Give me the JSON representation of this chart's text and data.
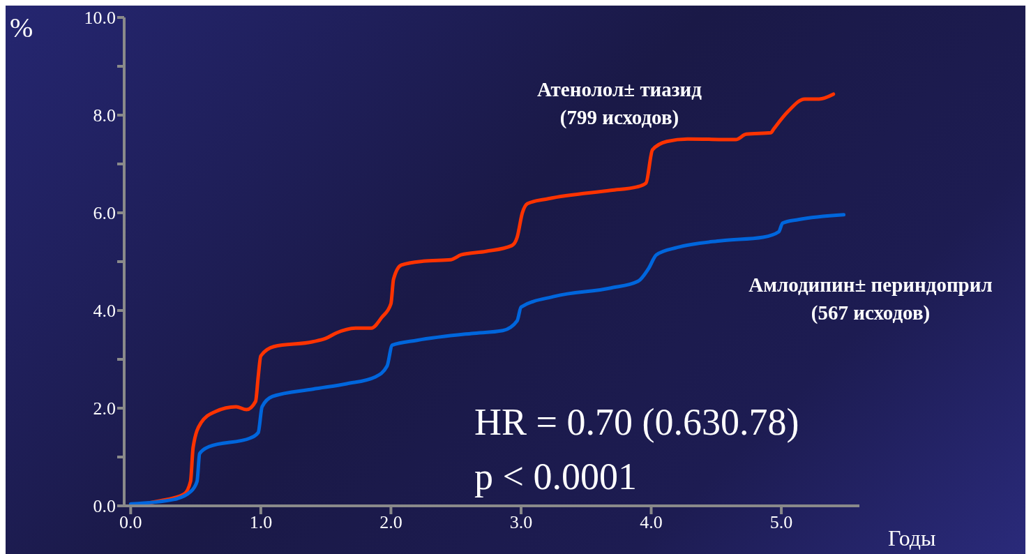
{
  "chart_data": {
    "type": "line",
    "xlabel": "Годы",
    "ylabel": "%",
    "xlim": [
      -0.05,
      5.6
    ],
    "xticks": [
      {
        "value": 0,
        "label": "0.0"
      },
      {
        "value": 1,
        "label": "1.0"
      },
      {
        "value": 2,
        "label": "2.0"
      },
      {
        "value": 3,
        "label": "3.0"
      },
      {
        "value": 4,
        "label": "4.0"
      },
      {
        "value": 5,
        "label": "5.0"
      }
    ],
    "ylim": [
      0,
      10
    ],
    "yticks": [
      {
        "value": 0,
        "label": "0.0"
      },
      {
        "value": 1,
        "label": null
      },
      {
        "value": 2,
        "label": "2.0"
      },
      {
        "value": 3,
        "label": null
      },
      {
        "value": 4,
        "label": "4.0"
      },
      {
        "value": 5,
        "label": null
      },
      {
        "value": 6,
        "label": "6.0"
      },
      {
        "value": 7,
        "label": null
      },
      {
        "value": 8,
        "label": "8.0"
      },
      {
        "value": 9,
        "label": null
      },
      {
        "value": 10,
        "label": "10.0"
      }
    ],
    "series": [
      {
        "name": "Атенолол± тиазид (799 исходов)",
        "color": "#ff3300",
        "x": [
          0,
          0.22,
          0.41,
          0.46,
          0.48,
          0.54,
          0.65,
          0.81,
          0.89,
          0.96,
          0.98,
          1.0,
          1.1,
          1.4,
          1.5,
          1.58,
          1.74,
          1.85,
          1.93,
          2.0,
          2.02,
          2.08,
          2.25,
          2.46,
          2.54,
          2.73,
          2.93,
          2.97,
          3.01,
          3.05,
          3.21,
          3.69,
          3.89,
          3.96,
          4.01,
          4.12,
          4.28,
          4.65,
          4.73,
          4.92,
          4.94,
          5.05,
          5.18,
          5.29,
          5.4
        ],
        "values": [
          0,
          0.1,
          0.24,
          0.5,
          1.2,
          1.7,
          1.93,
          2.03,
          1.97,
          2.14,
          2.64,
          3.07,
          3.26,
          3.36,
          3.43,
          3.54,
          3.64,
          3.64,
          3.86,
          4.14,
          4.64,
          4.93,
          5.01,
          5.04,
          5.14,
          5.21,
          5.33,
          5.5,
          6.0,
          6.19,
          6.29,
          6.46,
          6.53,
          6.61,
          7.29,
          7.46,
          7.51,
          7.5,
          7.61,
          7.64,
          7.71,
          8.07,
          8.33,
          8.33,
          8.43
        ]
      },
      {
        "name": "Амлодипин± периндоприл (567 исходов)",
        "color": "#0066dd",
        "x": [
          0,
          0.33,
          0.46,
          0.51,
          0.53,
          0.6,
          0.92,
          0.98,
          1.01,
          1.09,
          1.4,
          1.66,
          1.88,
          1.97,
          2.01,
          2.2,
          2.62,
          2.86,
          2.97,
          3.0,
          3.26,
          3.69,
          3.9,
          3.98,
          4.04,
          4.2,
          4.54,
          4.86,
          4.98,
          5.01,
          5.13,
          5.48
        ],
        "values": [
          0.04,
          0.13,
          0.29,
          0.5,
          1.07,
          1.21,
          1.39,
          1.5,
          2.03,
          2.24,
          2.39,
          2.5,
          2.64,
          2.86,
          3.29,
          3.39,
          3.53,
          3.59,
          3.79,
          4.07,
          4.29,
          4.46,
          4.6,
          4.86,
          5.14,
          5.29,
          5.43,
          5.5,
          5.61,
          5.79,
          5.86,
          5.96
        ]
      }
    ],
    "annotations": [
      "HR = 0.70 (0.630.78)",
      "p < 0.0001"
    ]
  }
}
